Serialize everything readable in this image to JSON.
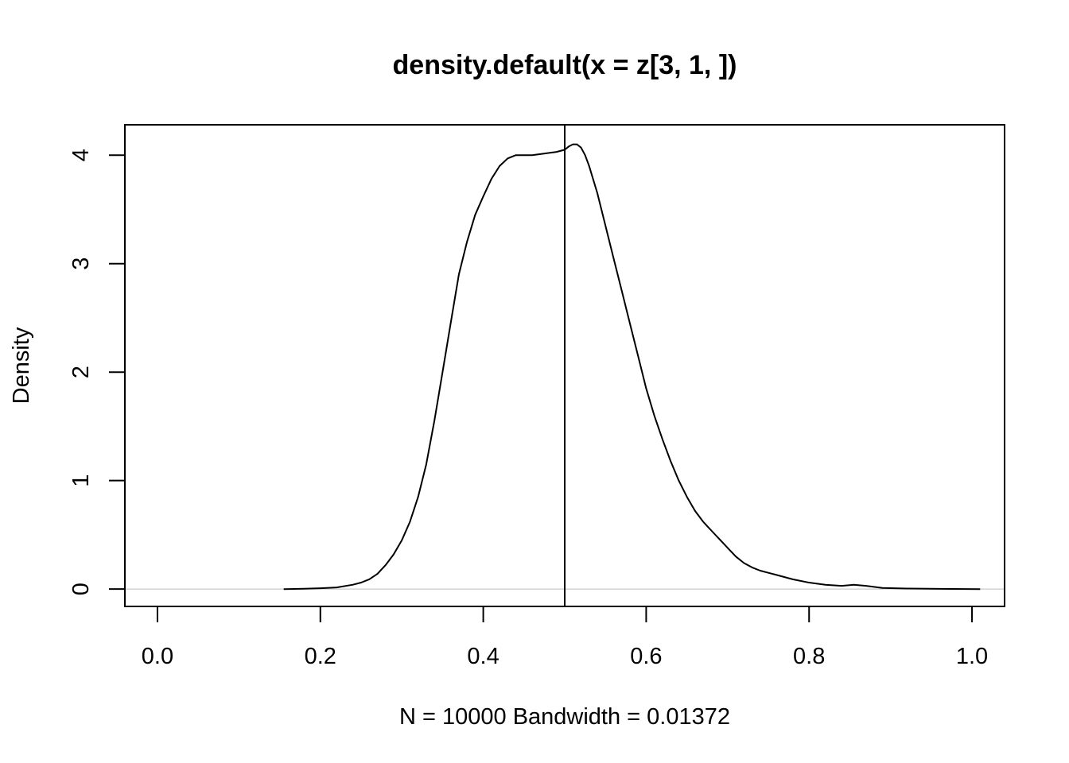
{
  "chart_data": {
    "type": "line",
    "title": "density.default(x = z[3, 1, ])",
    "xlabel": "N = 10000   Bandwidth = 0.01372",
    "ylabel": "Density",
    "xlim": [
      -0.04,
      1.04
    ],
    "ylim": [
      -0.16,
      4.28
    ],
    "x_ticks": [
      0.0,
      0.2,
      0.4,
      0.6,
      0.8,
      1.0
    ],
    "x_tick_labels": [
      "0.0",
      "0.2",
      "0.4",
      "0.6",
      "0.8",
      "1.0"
    ],
    "y_ticks": [
      0,
      1,
      2,
      3,
      4
    ],
    "y_tick_labels": [
      "0",
      "1",
      "2",
      "3",
      "4"
    ],
    "grid": false,
    "legend": "none",
    "vline": 0.5,
    "baseline": 0,
    "colors": {
      "line": "#000000",
      "baseline": "#bebebe",
      "frame": "#000000"
    },
    "series": [
      {
        "x": [
          0.155,
          0.18,
          0.2,
          0.22,
          0.24,
          0.25,
          0.26,
          0.27,
          0.28,
          0.29,
          0.3,
          0.31,
          0.32,
          0.33,
          0.34,
          0.35,
          0.36,
          0.37,
          0.38,
          0.39,
          0.4,
          0.41,
          0.42,
          0.43,
          0.44,
          0.45,
          0.46,
          0.47,
          0.48,
          0.49,
          0.5,
          0.505,
          0.51,
          0.515,
          0.52,
          0.525,
          0.53,
          0.54,
          0.55,
          0.56,
          0.57,
          0.58,
          0.59,
          0.6,
          0.61,
          0.62,
          0.63,
          0.64,
          0.65,
          0.66,
          0.67,
          0.68,
          0.69,
          0.7,
          0.71,
          0.72,
          0.73,
          0.74,
          0.75,
          0.76,
          0.78,
          0.8,
          0.82,
          0.84,
          0.855,
          0.87,
          0.89,
          0.92,
          0.96,
          1.01
        ],
        "y": [
          0.0,
          0.003,
          0.008,
          0.015,
          0.04,
          0.06,
          0.09,
          0.14,
          0.22,
          0.32,
          0.45,
          0.62,
          0.85,
          1.15,
          1.55,
          2.0,
          2.45,
          2.9,
          3.2,
          3.45,
          3.62,
          3.78,
          3.9,
          3.97,
          4.0,
          4.0,
          4.0,
          4.01,
          4.02,
          4.03,
          4.05,
          4.08,
          4.1,
          4.1,
          4.07,
          4.0,
          3.9,
          3.65,
          3.35,
          3.05,
          2.75,
          2.45,
          2.15,
          1.85,
          1.6,
          1.38,
          1.18,
          1.0,
          0.85,
          0.72,
          0.62,
          0.54,
          0.46,
          0.38,
          0.3,
          0.24,
          0.2,
          0.17,
          0.15,
          0.13,
          0.09,
          0.06,
          0.04,
          0.03,
          0.04,
          0.03,
          0.01,
          0.005,
          0.002,
          0.0
        ]
      }
    ]
  }
}
